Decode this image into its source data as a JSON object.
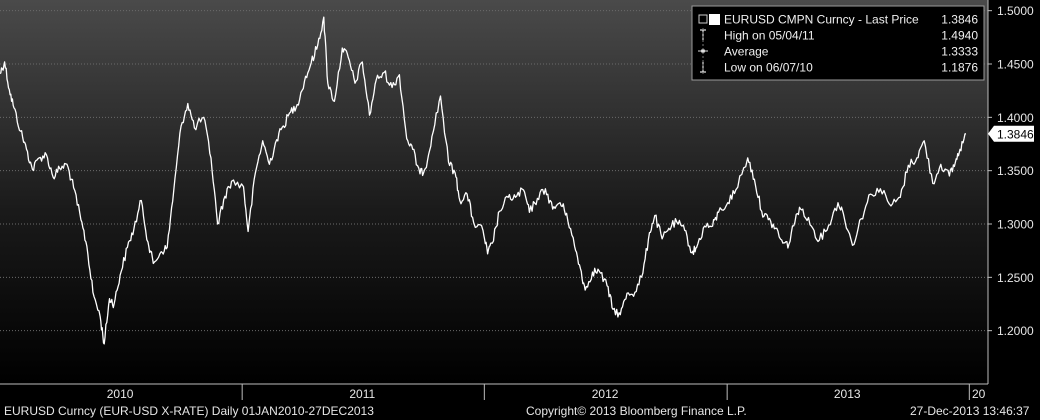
{
  "chart_data": {
    "type": "line",
    "title": "",
    "xlabel": "",
    "ylabel": "",
    "ylim": [
      1.15,
      1.51
    ],
    "xlim": [
      "2010-01-01",
      "2013-12-27"
    ],
    "yticks": [
      "1.2000",
      "1.2500",
      "1.3000",
      "1.3500",
      "1.4000",
      "1.4500",
      "1.5000"
    ],
    "xticks": [
      {
        "label": "2010",
        "at": "2010-07-01"
      },
      {
        "label": "2011",
        "at": "2011-07-01"
      },
      {
        "label": "2012",
        "at": "2012-07-01"
      },
      {
        "label": "2013",
        "at": "2013-07-01"
      },
      {
        "label": "20",
        "at": "2013-12-27"
      }
    ],
    "year_dividers": [
      "2011-01-01",
      "2012-01-01",
      "2013-01-01",
      "2014-01-01"
    ],
    "last_price_label": "1.3846",
    "grid": true,
    "legend": {
      "placement": "top-right",
      "rows": [
        {
          "label": "EURUSD CMPN Curncy - Last Price",
          "value": "1.3846",
          "marker": "square"
        },
        {
          "label": "High on 05/04/11",
          "value": "1.4940",
          "marker": "high"
        },
        {
          "label": "Average",
          "value": "1.3333",
          "marker": "average"
        },
        {
          "label": "Low on 06/07/10",
          "value": "1.1876",
          "marker": "low"
        }
      ]
    },
    "series": [
      {
        "name": "EURUSD CMPN Curncy - Last Price",
        "color": "#ffffff",
        "x": [
          "2010-01-01",
          "2010-01-08",
          "2010-01-15",
          "2010-01-22",
          "2010-02-01",
          "2010-02-10",
          "2010-02-19",
          "2010-03-01",
          "2010-03-12",
          "2010-03-22",
          "2010-04-01",
          "2010-04-12",
          "2010-04-22",
          "2010-05-03",
          "2010-05-12",
          "2010-05-21",
          "2010-06-01",
          "2010-06-07",
          "2010-06-15",
          "2010-06-22",
          "2010-07-01",
          "2010-07-12",
          "2010-07-22",
          "2010-08-02",
          "2010-08-12",
          "2010-08-20",
          "2010-09-01",
          "2010-09-10",
          "2010-09-20",
          "2010-10-01",
          "2010-10-11",
          "2010-10-21",
          "2010-11-04",
          "2010-11-15",
          "2010-11-25",
          "2010-12-06",
          "2010-12-16",
          "2011-01-03",
          "2011-01-10",
          "2011-01-21",
          "2011-02-01",
          "2011-02-11",
          "2011-02-22",
          "2011-03-04",
          "2011-03-15",
          "2011-03-25",
          "2011-04-05",
          "2011-04-15",
          "2011-04-25",
          "2011-05-04",
          "2011-05-10",
          "2011-05-20",
          "2011-06-01",
          "2011-06-10",
          "2011-06-20",
          "2011-07-01",
          "2011-07-12",
          "2011-07-22",
          "2011-08-03",
          "2011-08-15",
          "2011-08-26",
          "2011-09-06",
          "2011-09-15",
          "2011-09-26",
          "2011-10-04",
          "2011-10-14",
          "2011-10-27",
          "2011-11-08",
          "2011-11-18",
          "2011-11-25",
          "2011-12-06",
          "2011-12-16",
          "2011-12-30",
          "2012-01-06",
          "2012-01-13",
          "2012-01-24",
          "2012-02-06",
          "2012-02-17",
          "2012-02-29",
          "2012-03-09",
          "2012-03-21",
          "2012-04-02",
          "2012-04-13",
          "2012-04-24",
          "2012-05-04",
          "2012-05-16",
          "2012-05-25",
          "2012-06-01",
          "2012-06-12",
          "2012-06-22",
          "2012-07-04",
          "2012-07-13",
          "2012-07-24",
          "2012-08-03",
          "2012-08-15",
          "2012-08-27",
          "2012-09-06",
          "2012-09-14",
          "2012-09-25",
          "2012-10-05",
          "2012-10-17",
          "2012-10-29",
          "2012-11-09",
          "2012-11-16",
          "2012-11-28",
          "2012-12-10",
          "2012-12-19",
          "2013-01-02",
          "2013-01-14",
          "2013-02-01",
          "2013-02-11",
          "2013-02-22",
          "2013-03-04",
          "2013-03-15",
          "2013-03-26",
          "2013-04-04",
          "2013-04-15",
          "2013-04-25",
          "2013-05-08",
          "2013-05-20",
          "2013-06-03",
          "2013-06-17",
          "2013-06-25",
          "2013-07-09",
          "2013-07-22",
          "2013-08-05",
          "2013-08-20",
          "2013-09-05",
          "2013-09-19",
          "2013-10-01",
          "2013-10-14",
          "2013-10-25",
          "2013-11-07",
          "2013-11-19",
          "2013-12-02",
          "2013-12-11",
          "2013-12-18",
          "2013-12-27"
        ],
        "values": [
          1.441,
          1.452,
          1.426,
          1.409,
          1.387,
          1.37,
          1.351,
          1.362,
          1.365,
          1.344,
          1.352,
          1.356,
          1.334,
          1.304,
          1.279,
          1.236,
          1.213,
          1.1876,
          1.23,
          1.225,
          1.252,
          1.278,
          1.296,
          1.322,
          1.283,
          1.263,
          1.274,
          1.278,
          1.332,
          1.392,
          1.413,
          1.39,
          1.4,
          1.362,
          1.3,
          1.326,
          1.34,
          1.335,
          1.293,
          1.348,
          1.378,
          1.356,
          1.379,
          1.392,
          1.405,
          1.412,
          1.434,
          1.451,
          1.468,
          1.494,
          1.432,
          1.415,
          1.465,
          1.456,
          1.432,
          1.452,
          1.402,
          1.435,
          1.442,
          1.428,
          1.44,
          1.38,
          1.37,
          1.347,
          1.352,
          1.382,
          1.42,
          1.358,
          1.348,
          1.322,
          1.328,
          1.301,
          1.294,
          1.272,
          1.282,
          1.312,
          1.325,
          1.325,
          1.332,
          1.311,
          1.324,
          1.333,
          1.314,
          1.32,
          1.31,
          1.279,
          1.258,
          1.238,
          1.255,
          1.256,
          1.242,
          1.22,
          1.215,
          1.235,
          1.236,
          1.254,
          1.292,
          1.308,
          1.286,
          1.296,
          1.302,
          1.294,
          1.273,
          1.278,
          1.298,
          1.298,
          1.311,
          1.32,
          1.332,
          1.362,
          1.342,
          1.312,
          1.304,
          1.296,
          1.282,
          1.281,
          1.309,
          1.314,
          1.298,
          1.285,
          1.299,
          1.32,
          1.31,
          1.28,
          1.305,
          1.328,
          1.333,
          1.317,
          1.325,
          1.355,
          1.362,
          1.378,
          1.338,
          1.356,
          1.345,
          1.358,
          1.37,
          1.3846
        ]
      }
    ]
  },
  "footer": {
    "left": "EURUSD Curncy (EUR-USD X-RATE)  Daily 01JAN2010-27DEC2013",
    "center": "Copyright© 2013 Bloomberg Finance L.P.",
    "right": "27-Dec-2013 13:46:37"
  },
  "colors": {
    "background_top": "#4a4a4a",
    "background_bottom": "#000000",
    "line": "#ffffff",
    "grid": "#6b6b6b"
  }
}
